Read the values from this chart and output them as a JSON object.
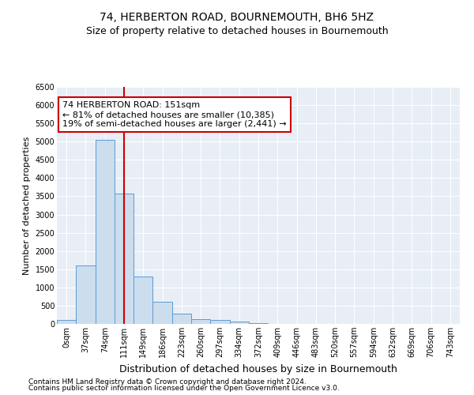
{
  "title": "74, HERBERTON ROAD, BOURNEMOUTH, BH6 5HZ",
  "subtitle": "Size of property relative to detached houses in Bournemouth",
  "xlabel": "Distribution of detached houses by size in Bournemouth",
  "ylabel": "Number of detached properties",
  "footnote1": "Contains HM Land Registry data © Crown copyright and database right 2024.",
  "footnote2": "Contains public sector information licensed under the Open Government Licence v3.0.",
  "bar_labels": [
    "0sqm",
    "37sqm",
    "74sqm",
    "111sqm",
    "149sqm",
    "186sqm",
    "223sqm",
    "260sqm",
    "297sqm",
    "334sqm",
    "372sqm",
    "409sqm",
    "446sqm",
    "483sqm",
    "520sqm",
    "557sqm",
    "594sqm",
    "632sqm",
    "669sqm",
    "706sqm",
    "743sqm"
  ],
  "bar_values": [
    100,
    1600,
    5050,
    3570,
    1300,
    600,
    275,
    130,
    100,
    60,
    30,
    10,
    5,
    2,
    1,
    0,
    0,
    0,
    0,
    0,
    0
  ],
  "bar_color": "#ccdded",
  "bar_edge_color": "#5b9bd5",
  "vline_x": 3.5,
  "vline_color": "#cc0000",
  "annotation_text": "74 HERBERTON ROAD: 151sqm\n← 81% of detached houses are smaller (10,385)\n19% of semi-detached houses are larger (2,441) →",
  "annotation_box_color": "#cc0000",
  "ylim": [
    0,
    6500
  ],
  "yticks": [
    0,
    500,
    1000,
    1500,
    2000,
    2500,
    3000,
    3500,
    4000,
    4500,
    5000,
    5500,
    6000,
    6500
  ],
  "bg_color": "#e8eef5",
  "grid_color": "#ffffff",
  "title_fontsize": 10,
  "subtitle_fontsize": 9,
  "xlabel_fontsize": 9,
  "ylabel_fontsize": 8,
  "tick_fontsize": 7,
  "annot_fontsize": 8,
  "footnote_fontsize": 6.5
}
